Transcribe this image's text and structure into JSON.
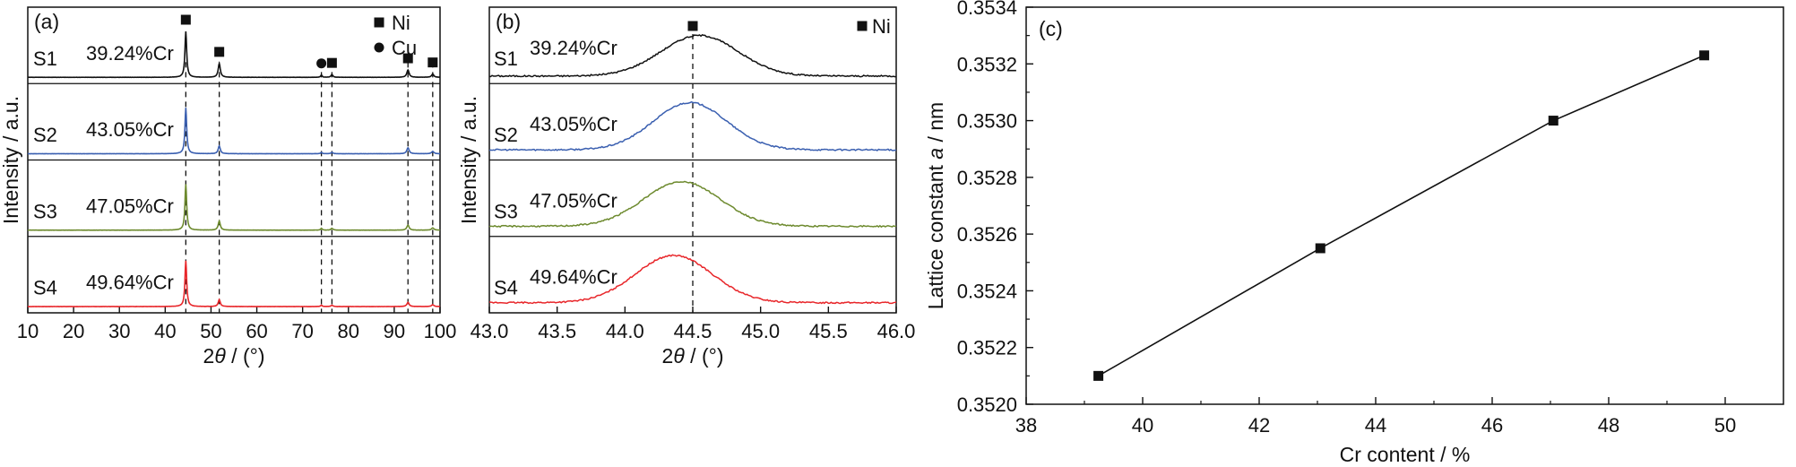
{
  "figure": {
    "colors": {
      "S1": "#111111",
      "S2": "#3a5fb0",
      "S3": "#6d8a2e",
      "S4": "#e8262a",
      "axis": "#111111",
      "marker": "#111111",
      "reference_line": "#111111"
    }
  },
  "chart_data": [
    {
      "panel": "a",
      "type": "line",
      "panel_tag": "(a)",
      "xlabel_prefix": "2",
      "xlabel_symbol": "θ",
      "xlabel_suffix": " / (°)",
      "ylabel": "Intensity / a.u.",
      "xlim": [
        10,
        100
      ],
      "xticks": [
        10,
        20,
        30,
        40,
        50,
        60,
        70,
        80,
        90,
        100
      ],
      "y_tick_labels_shown": false,
      "stacked": true,
      "legend": [
        {
          "marker": "square",
          "label": "Ni"
        },
        {
          "marker": "circle",
          "label": "Cu"
        }
      ],
      "legend_placement": "top-right",
      "reference_lines_x": [
        44.5,
        51.8,
        74.1,
        76.4,
        93.0,
        98.4
      ],
      "peak_markers": [
        {
          "x": 44.5,
          "marker": "square",
          "phase": "Ni"
        },
        {
          "x": 51.8,
          "marker": "square",
          "phase": "Ni"
        },
        {
          "x": 74.1,
          "marker": "circle",
          "phase": "Cu"
        },
        {
          "x": 76.4,
          "marker": "square",
          "phase": "Ni"
        },
        {
          "x": 93.0,
          "marker": "square",
          "phase": "Ni"
        },
        {
          "x": 98.4,
          "marker": "square",
          "phase": "Ni"
        }
      ],
      "peaks": [
        {
          "center": 44.5,
          "width": 0.45
        },
        {
          "center": 51.8,
          "width": 0.55
        },
        {
          "center": 74.1,
          "width": 0.4
        },
        {
          "center": 76.4,
          "width": 0.5
        },
        {
          "center": 93.0,
          "width": 0.6
        },
        {
          "center": 98.4,
          "width": 0.6
        }
      ],
      "series": [
        {
          "name": "S1",
          "composition": "39.24%Cr",
          "color_key": "S1",
          "relative_peak_heights": [
            1.0,
            0.3,
            0.05,
            0.06,
            0.16,
            0.07
          ]
        },
        {
          "name": "S2",
          "composition": "43.05%Cr",
          "color_key": "S2",
          "relative_peak_heights": [
            1.0,
            0.17,
            0.03,
            0.03,
            0.13,
            0.05
          ]
        },
        {
          "name": "S3",
          "composition": "47.05%Cr",
          "color_key": "S3",
          "relative_peak_heights": [
            1.0,
            0.2,
            0.04,
            0.04,
            0.11,
            0.05
          ]
        },
        {
          "name": "S4",
          "composition": "49.64%Cr",
          "color_key": "S4",
          "relative_peak_heights": [
            1.0,
            0.15,
            0.03,
            0.03,
            0.09,
            0.04
          ]
        }
      ]
    },
    {
      "panel": "b",
      "type": "line",
      "panel_tag": "(b)",
      "xlabel_prefix": "2",
      "xlabel_symbol": "θ",
      "xlabel_suffix": " / (°)",
      "ylabel": "Intensity / a.u.",
      "xlim": [
        43.0,
        46.0
      ],
      "xticks": [
        43.0,
        43.5,
        44.0,
        44.5,
        45.0,
        45.5,
        46.0
      ],
      "xtick_labels": [
        "43.0",
        "43.5",
        "44.0",
        "44.5",
        "45.0",
        "45.5",
        "46.0"
      ],
      "y_tick_labels_shown": false,
      "stacked": true,
      "legend": [
        {
          "marker": "square",
          "label": "Ni"
        }
      ],
      "legend_placement": "top-right",
      "reference_line_x": 44.5,
      "series": [
        {
          "name": "S1",
          "composition": "39.24%Cr",
          "color_key": "S1",
          "peak_center": 44.55,
          "peak_width": 0.42,
          "baseline": 0.06,
          "peak_height": 0.62
        },
        {
          "name": "S2",
          "composition": "43.05%Cr",
          "color_key": "S2",
          "peak_center": 44.48,
          "peak_width": 0.4,
          "baseline": 0.1,
          "peak_height": 0.72
        },
        {
          "name": "S3",
          "composition": "47.05%Cr",
          "color_key": "S3",
          "peak_center": 44.42,
          "peak_width": 0.42,
          "baseline": 0.1,
          "peak_height": 0.68
        },
        {
          "name": "S4",
          "composition": "49.64%Cr",
          "color_key": "S4",
          "peak_center": 44.36,
          "peak_width": 0.42,
          "baseline": 0.1,
          "peak_height": 0.72
        }
      ]
    },
    {
      "panel": "c",
      "type": "line",
      "panel_tag": "(c)",
      "xlabel": "Cr content / %",
      "ylabel_prefix": "Lattice constant ",
      "ylabel_symbol": "a",
      "ylabel_suffix": " / nm",
      "xlim": [
        38,
        51
      ],
      "ylim": [
        0.352,
        0.3534
      ],
      "xticks": [
        38,
        40,
        42,
        44,
        46,
        48,
        50
      ],
      "yticks": [
        0.352,
        0.3522,
        0.3524,
        0.3526,
        0.3528,
        0.353,
        0.3532,
        0.3534
      ],
      "ytick_labels": [
        "0.3520",
        "0.3522",
        "0.3524",
        "0.3526",
        "0.3528",
        "0.3530",
        "0.3532",
        "0.3534"
      ],
      "marker": "square",
      "series": [
        {
          "x": [
            39.24,
            43.05,
            47.05,
            49.64
          ],
          "y": [
            0.3521,
            0.35255,
            0.353,
            0.35323
          ]
        }
      ]
    }
  ]
}
